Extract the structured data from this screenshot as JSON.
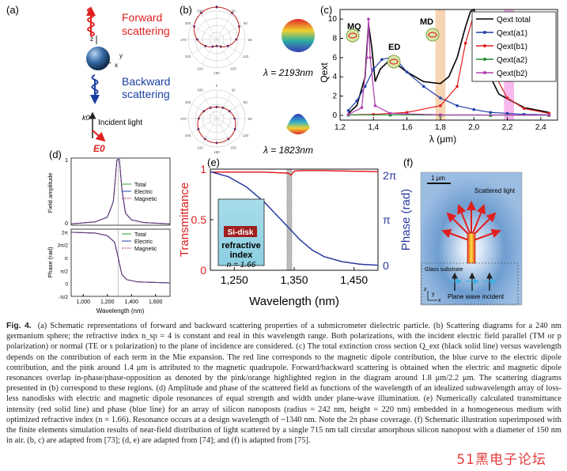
{
  "figure": {
    "panel_labels": [
      "(a)",
      "(b)",
      "(c)",
      "(d)",
      "(e)",
      "(f)"
    ],
    "a": {
      "forward": "Forward",
      "forward2": "scattering",
      "backward": "Backward",
      "backward2": "scattering",
      "incident": "Incident light",
      "k0": "k0",
      "e0": "E0",
      "axes": [
        "z",
        "x",
        "y"
      ]
    },
    "b": {
      "lambda1": "λ = 2193nm",
      "lambda2": "λ = 1823nm",
      "angle_ticks": [
        "0",
        "30",
        "60",
        "90",
        "120",
        "150",
        "180",
        "210",
        "240",
        "270",
        "300",
        "330"
      ]
    },
    "c": {
      "ylabel": "Qext",
      "xlabel": "λ (μm)",
      "labels": {
        "mq": "MQ",
        "md": "MD",
        "ed": "ED"
      },
      "legend": [
        "Qext total",
        "Qext(a1)",
        "Qext(b1)",
        "Qext(a2)",
        "Qext(b2)"
      ],
      "colors": {
        "total": "#000000",
        "a1": "#2340a8",
        "b1": "#e02020",
        "a2": "#1e8a30",
        "b2": "#b03cb0",
        "orange": "#f5c9a0",
        "pink": "#f5a6e8"
      }
    },
    "d": {
      "ylabel_top": "Field amplitude",
      "ylabel_bottom": "Phase (rad)",
      "xlabel": "Wavelength (nm)",
      "legend": [
        "Total",
        "Electric",
        "Magnetic"
      ],
      "top_ticks": [
        "1",
        "0"
      ],
      "bottom_ticks": [
        "2π",
        "3π/2",
        "π",
        "π/2",
        "0",
        "-π/2"
      ],
      "xticks": [
        "1,000",
        "1,200",
        "1,400",
        "1,600"
      ]
    },
    "e": {
      "ylabel_left": "Transmittance",
      "ylabel_right": "Phase (rad)",
      "xlabel": "Wavelength (nm)",
      "inset_title": "Si-disk",
      "inset_line1": "refractive",
      "inset_line2": "index",
      "inset_line3": "n = 1.66",
      "left_ticks": [
        "1",
        "0.5",
        "0"
      ],
      "right_ticks": [
        "2π",
        "π",
        "0"
      ],
      "xticks": [
        "1,250",
        "1,350",
        "1,450"
      ]
    },
    "f": {
      "scale": "1 μm",
      "scattered": "Scattered light",
      "substrate": "Glass substrate",
      "plane_wave": "Plane wave incident",
      "axes": [
        "z",
        "x",
        "y"
      ]
    }
  },
  "chart_data": [
    {
      "type": "line",
      "panel": "c",
      "xlabel": "λ (μm)",
      "ylabel": "Qext",
      "xlim": [
        1.2,
        2.5
      ],
      "ylim": [
        -0.5,
        11
      ],
      "xticks": [
        1.2,
        1.4,
        1.6,
        1.8,
        2.0,
        2.2,
        2.4
      ],
      "yticks": [
        0,
        2,
        4,
        6,
        8,
        10
      ],
      "series": [
        {
          "name": "Qext total",
          "x": [
            1.25,
            1.3,
            1.35,
            1.37,
            1.39,
            1.41,
            1.44,
            1.5,
            1.6,
            1.7,
            1.8,
            1.85,
            1.9,
            1.95,
            1.98,
            2.0,
            2.03,
            2.07,
            2.15,
            2.3,
            2.45
          ],
          "y": [
            0.2,
            1.0,
            4.0,
            9.5,
            7.0,
            3.5,
            4.8,
            5.8,
            4.5,
            3.5,
            3.3,
            4.0,
            6.0,
            9.2,
            10.8,
            11.0,
            9.2,
            5.0,
            2.2,
            0.8,
            0.3
          ]
        },
        {
          "name": "Qext(a1)",
          "x": [
            1.25,
            1.3,
            1.35,
            1.4,
            1.45,
            1.5,
            1.55,
            1.6,
            1.7,
            1.8,
            1.9,
            2.0,
            2.1,
            2.2,
            2.3,
            2.45
          ],
          "y": [
            0.5,
            1.5,
            3.0,
            4.8,
            5.8,
            6.0,
            5.5,
            4.5,
            3.0,
            1.8,
            1.0,
            0.6,
            0.3,
            0.2,
            0.1,
            0.05
          ]
        },
        {
          "name": "Qext(b1)",
          "x": [
            1.25,
            1.4,
            1.6,
            1.8,
            1.9,
            1.95,
            2.0,
            2.05,
            2.1,
            2.2,
            2.3,
            2.45
          ],
          "y": [
            0.05,
            0.1,
            0.3,
            1.0,
            3.0,
            7.5,
            10.5,
            9.0,
            5.0,
            1.8,
            0.7,
            0.2
          ]
        },
        {
          "name": "Qext(a2)",
          "x": [
            1.25,
            1.5,
            1.8,
            2.1,
            2.45
          ],
          "y": [
            0.05,
            0.05,
            0.03,
            0.02,
            0.01
          ]
        },
        {
          "name": "Qext(b2)",
          "x": [
            1.25,
            1.33,
            1.36,
            1.37,
            1.38,
            1.41,
            1.5,
            1.8,
            2.45
          ],
          "y": [
            0.1,
            0.8,
            6.0,
            10.0,
            6.0,
            1.0,
            0.2,
            0.05,
            0.02
          ]
        }
      ]
    },
    {
      "type": "line",
      "panel": "d-top",
      "xlabel": "Wavelength (nm)",
      "ylabel": "Field amplitude",
      "xlim": [
        900,
        1720
      ],
      "ylim": [
        0,
        1
      ],
      "series": [
        {
          "name": "Total",
          "x": [
            900,
            1100,
            1200,
            1250,
            1280,
            1300,
            1320,
            1350,
            1400,
            1500,
            1720
          ],
          "y": [
            0.02,
            0.05,
            0.12,
            0.35,
            0.98,
            0.98,
            0.55,
            0.18,
            0.08,
            0.04,
            0.02
          ]
        },
        {
          "name": "Electric",
          "x": [
            900,
            1100,
            1200,
            1250,
            1280,
            1300,
            1320,
            1350,
            1400,
            1500,
            1720
          ],
          "y": [
            0.02,
            0.05,
            0.12,
            0.35,
            0.98,
            0.98,
            0.55,
            0.18,
            0.08,
            0.04,
            0.02
          ]
        },
        {
          "name": "Magnetic",
          "x": [
            900,
            1100,
            1200,
            1250,
            1280,
            1300,
            1320,
            1350,
            1400,
            1500,
            1720
          ],
          "y": [
            0.02,
            0.05,
            0.12,
            0.35,
            0.98,
            0.98,
            0.55,
            0.18,
            0.08,
            0.04,
            0.02
          ]
        }
      ]
    },
    {
      "type": "line",
      "panel": "d-bottom",
      "xlabel": "Wavelength (nm)",
      "ylabel": "Phase (rad)",
      "xlim": [
        900,
        1720
      ],
      "ylim": [
        -0.5,
        2.1
      ],
      "series": [
        {
          "name": "Total",
          "x": [
            900,
            1100,
            1200,
            1260,
            1290,
            1320,
            1360,
            1450,
            1720
          ],
          "y": [
            1.98,
            1.95,
            1.85,
            1.6,
            1.0,
            0.35,
            0.15,
            0.06,
            0.02
          ]
        },
        {
          "name": "Electric",
          "x": [
            900,
            1100,
            1200,
            1260,
            1290,
            1320,
            1360,
            1450,
            1720
          ],
          "y": [
            1.98,
            1.95,
            1.85,
            1.6,
            1.0,
            0.35,
            0.15,
            0.06,
            0.02
          ]
        },
        {
          "name": "Magnetic",
          "x": [
            900,
            1100,
            1200,
            1260,
            1290,
            1320,
            1360,
            1450,
            1720
          ],
          "y": [
            1.98,
            1.95,
            1.85,
            1.6,
            1.0,
            0.35,
            0.15,
            0.06,
            0.02
          ]
        }
      ]
    },
    {
      "type": "line",
      "panel": "e",
      "xlabel": "Wavelength (nm)",
      "ylabel": "Transmittance",
      "ylabel_right": "Phase (rad)",
      "xlim": [
        1210,
        1490
      ],
      "ylim": [
        0,
        1
      ],
      "series": [
        {
          "name": "Transmittance",
          "axis": "left",
          "x": [
            1210,
            1300,
            1340,
            1345,
            1350,
            1360,
            1400,
            1490
          ],
          "y": [
            0.97,
            0.97,
            0.96,
            0.94,
            0.98,
            0.985,
            0.985,
            0.975
          ]
        },
        {
          "name": "Phase",
          "axis": "right",
          "x": [
            1210,
            1240,
            1270,
            1300,
            1320,
            1340,
            1360,
            1380,
            1400,
            1430,
            1460,
            1490
          ],
          "y": [
            1.95,
            1.85,
            1.65,
            1.35,
            1.1,
            0.85,
            0.6,
            0.4,
            0.27,
            0.17,
            0.12,
            0.1
          ]
        }
      ]
    }
  ],
  "caption": {
    "label": "Fig. 4.",
    "text": "(a) Schematic representations of forward and backward scattering properties of a submicrometer dielectric particle. (b) Scattering diagrams for a 240 nm germanium sphere; the refractive index n_sp = 4 is constant and real in this wavelength range. Both polarizations, with the incident electric field parallel (TM or p polarization) or normal (TE or s polarization) to the plane of incidence are considered. (c) The total extinction cross section Q_ext (black solid line) versus wavelength depends on the contribution of each term in the Mie expansion. The red line corresponds to the magnetic dipole contribution, the blue curve to the electric dipole contribution, and the pink around 1.4 μm is attributed to the magnetic quadrupole. Forward/backward scattering is obtained when the electric and magnetic dipole resonances overlap in-phase/phase-opposition as denoted by the pink/orange highlighted region in the diagram around 1.8 μm/2.2 μm. The scattering diagrams presented in (b) correspond to these regions. (d) Amplitude and phase of the scattered field as functions of the wavelength of an idealized subwavelength array of loss-less nanodisks with electric and magnetic dipole resonances of equal strength and width under plane-wave illumination. (e) Numerically calculated transmittance intensity (red solid line) and phase (blue line) for an array of silicon nanoposts (radius = 242 nm, height = 220 nm) embedded in a homogeneous medium with optimized refractive index (n = 1.66). Resonance occurs at a design wavelength of ~1340 nm. Note the 2π phase coverage. (f) Schematic illustration superimposed with the finite elements simulation results of near-field distribution of light scattered by a single 715 nm tall circular amorphous silicon nanopost with a diameter of 150 nm in air. (b, c) are adapted from [73]; (d, e) are adapted from [74]; and (f) is adapted from [75]."
  },
  "watermark": "51黑电子论坛"
}
